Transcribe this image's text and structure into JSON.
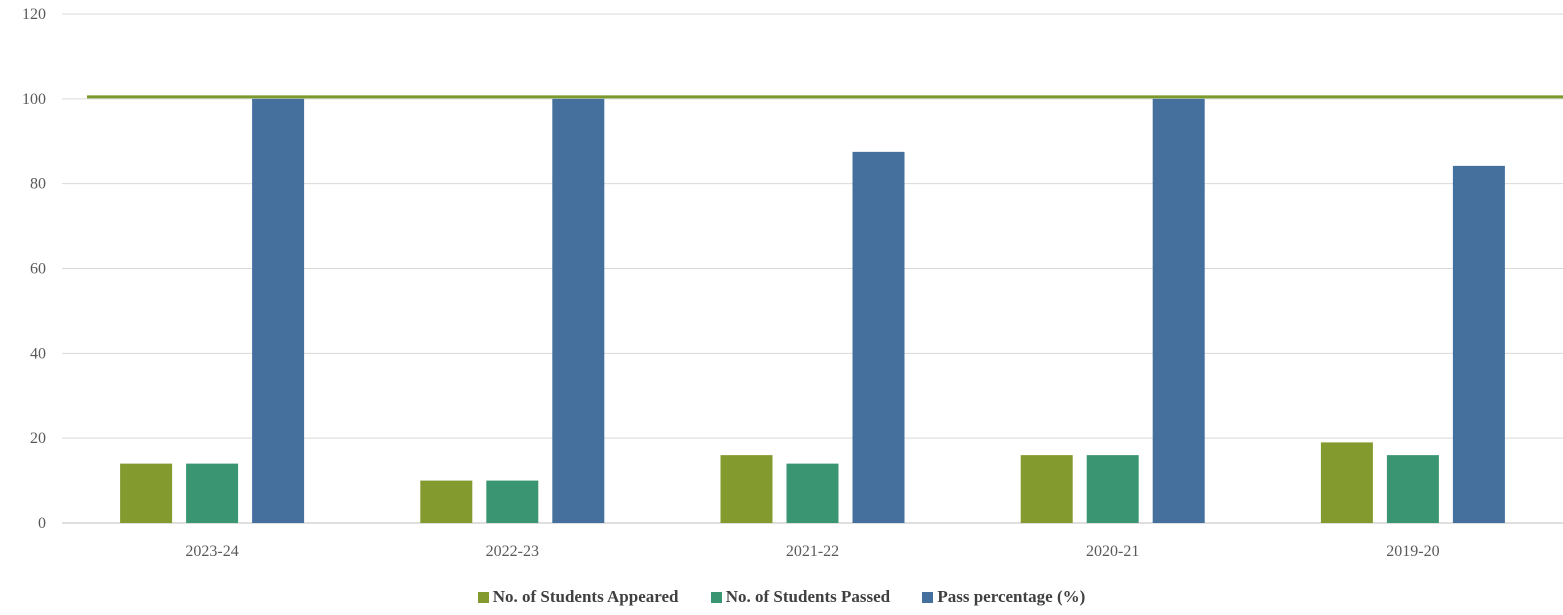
{
  "chart_data": {
    "type": "bar",
    "categories": [
      "2023-24",
      "2022-23",
      "2021-22",
      "2020-21",
      "2019-20"
    ],
    "series": [
      {
        "name": "No. of Students  Appeared",
        "values": [
          14,
          10,
          16,
          16,
          19
        ],
        "color": "#839A2E"
      },
      {
        "name": "No. of Students  Passed",
        "values": [
          14,
          10,
          14,
          16,
          16
        ],
        "color": "#3A9672"
      },
      {
        "name": "Pass percentage  (%)",
        "values": [
          100,
          100,
          87.5,
          100,
          84.2
        ],
        "color": "#45709E"
      }
    ],
    "reference_line": {
      "value": 100,
      "color": "#7A9A2E"
    },
    "yticks": [
      "0",
      "20",
      "40",
      "60",
      "80",
      "100",
      "120"
    ],
    "ylim": [
      0,
      120
    ],
    "grid": true,
    "legend_position": "bottom"
  }
}
